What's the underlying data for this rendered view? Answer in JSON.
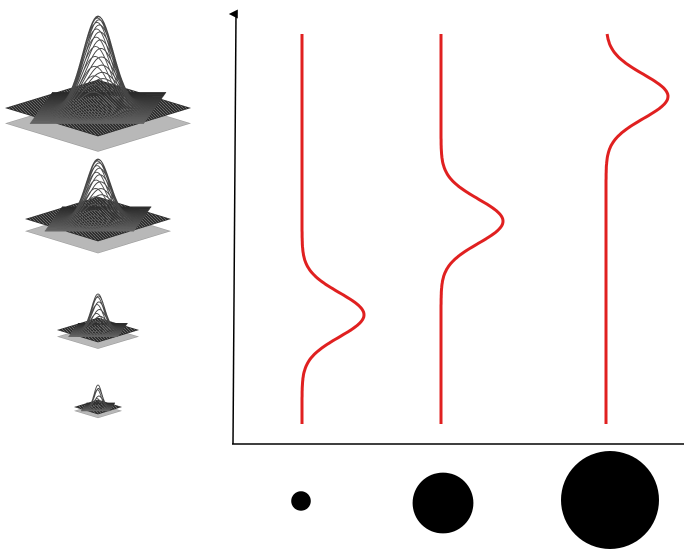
{
  "colors": {
    "background": "#ffffff",
    "axis": "#000000",
    "curve": "#e02020",
    "circle": "#000000",
    "surface_dark": "#2b2b2b",
    "surface_mesh": "#8a8a8a",
    "base_plane": "#b8b8b8"
  },
  "surfaces": [
    {
      "name": "gaussian-surface-large",
      "relative_size": 1.0
    },
    {
      "name": "gaussian-surface-medium",
      "relative_size": 0.8
    },
    {
      "name": "gaussian-surface-small",
      "relative_size": 0.5
    },
    {
      "name": "gaussian-surface-tiny",
      "relative_size": 0.35
    }
  ],
  "curves": [
    {
      "name": "red-curve-1",
      "bump_position": 0.28
    },
    {
      "name": "red-curve-2",
      "bump_position": 0.52
    },
    {
      "name": "red-curve-3",
      "bump_position": 0.84
    }
  ],
  "circles": [
    {
      "name": "circle-small",
      "relative_size": 0.2
    },
    {
      "name": "circle-medium",
      "relative_size": 0.62
    },
    {
      "name": "circle-large",
      "relative_size": 1.0
    }
  ]
}
